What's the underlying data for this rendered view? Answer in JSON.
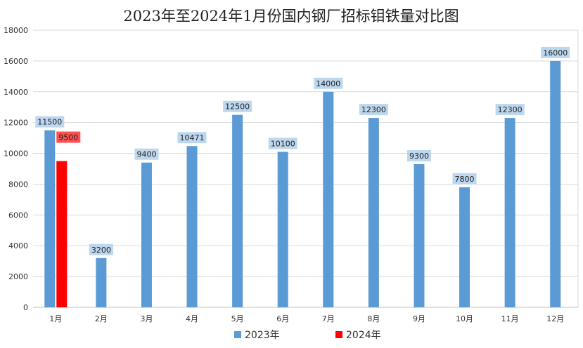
{
  "chart_data": {
    "type": "bar",
    "title": "2023年至2024年1月份国内钢厂招标钼铁量对比图",
    "categories": [
      "1月",
      "2月",
      "3月",
      "4月",
      "5月",
      "6月",
      "7月",
      "8月",
      "9月",
      "10月",
      "11月",
      "12月"
    ],
    "series": [
      {
        "name": "2023年",
        "color": "#5b9bd5",
        "label_bg": "#bdd7ee",
        "values": [
          11500,
          3200,
          9400,
          10471,
          12500,
          10100,
          14000,
          12300,
          9300,
          7800,
          12300,
          16000
        ],
        "labels": [
          "11500",
          "3200",
          "9400",
          "10471",
          "12500",
          "10100",
          "14000",
          "12300",
          "9300",
          "7800",
          "12300",
          "16000"
        ]
      },
      {
        "name": "2024年",
        "color": "#ff0000",
        "label_bg": "#ff5050",
        "values": [
          9500,
          null,
          null,
          null,
          null,
          null,
          null,
          null,
          null,
          null,
          null,
          null
        ],
        "labels": [
          "9500",
          null,
          null,
          null,
          null,
          null,
          null,
          null,
          null,
          null,
          null,
          null
        ]
      }
    ],
    "ylim": [
      0,
      18000
    ],
    "yticks": [
      "0",
      "2000",
      "4000",
      "6000",
      "8000",
      "10000",
      "12000",
      "14000",
      "16000",
      "18000"
    ],
    "grid": true,
    "legend_position": "bottom"
  }
}
